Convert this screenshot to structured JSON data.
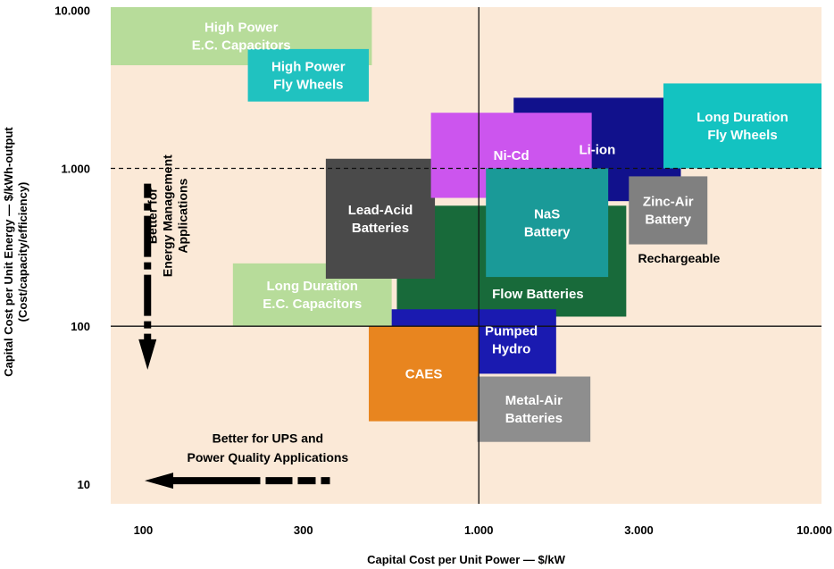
{
  "chart_data": {
    "type": "scatter",
    "xlabel": "Capital Cost per Unit Power — $/kW",
    "ylabel_line1": "Capital Cost per Unit Energy — $/kWh-output",
    "ylabel_line2": "(Cost/capacity/efficiency)",
    "x_scale": "log",
    "y_scale": "log",
    "xlim": [
      80,
      10500
    ],
    "ylim": [
      7.5,
      10500
    ],
    "x_ticks": [
      {
        "value": 100,
        "label": "100"
      },
      {
        "value": 300,
        "label": "300"
      },
      {
        "value": 1000,
        "label": "1.000"
      },
      {
        "value": 3000,
        "label": "3.000"
      },
      {
        "value": 10000,
        "label": "10.000"
      }
    ],
    "y_ticks": [
      {
        "value": 10,
        "label": "10"
      },
      {
        "value": 100,
        "label": "100"
      },
      {
        "value": 1000,
        "label": "1.000"
      },
      {
        "value": 10000,
        "label": "10.000"
      }
    ],
    "reference_lines": [
      {
        "axis": "x",
        "value": 1000,
        "style": "solid"
      },
      {
        "axis": "y",
        "value": 100,
        "style": "solid"
      },
      {
        "axis": "y",
        "value": 1000,
        "style": "dashed"
      }
    ],
    "regions": [
      {
        "name": "High Power E.C. Capacitors",
        "lines": [
          "High Power",
          "E.C. Capacitors"
        ],
        "x": [
          80,
          480
        ],
        "y": [
          4500,
          10500
        ],
        "color": "#b7dc9a",
        "text_color": "#ffffff"
      },
      {
        "name": "High Power Fly Wheels",
        "lines": [
          "High Power",
          "Fly Wheels"
        ],
        "x": [
          205,
          470
        ],
        "y": [
          2650,
          5700
        ],
        "color": "#20c2c0",
        "text_color": "#ffffff"
      },
      {
        "name": "Long Duration E.C. Capacitors",
        "lines": [
          "Long Duration",
          "E.C. Capacitors"
        ],
        "x": [
          185,
          550
        ],
        "y": [
          100,
          250
        ],
        "color": "#b7dc9a",
        "text_color": "#ffffff"
      },
      {
        "name": "Flow Batteries",
        "lines": [
          "Flow Batteries"
        ],
        "x": [
          570,
          2750
        ],
        "y": [
          115,
          580
        ],
        "color": "#186a3a",
        "text_color": "#ffffff",
        "label_at": [
          1500,
          160
        ]
      },
      {
        "name": "Lead-Acid Batteries",
        "lines": [
          "Lead-Acid",
          "Batteries"
        ],
        "x": [
          350,
          740
        ],
        "y": [
          200,
          1150
        ],
        "color": "#4a4a4a",
        "text_color": "#ffffff"
      },
      {
        "name": "Pumped Hydro",
        "lines": [
          "Pumped",
          "Hydro"
        ],
        "x": [
          550,
          1700
        ],
        "y": [
          50,
          128
        ],
        "color": "#1a1ab0",
        "text_color": "#ffffff",
        "label_at": [
          1250,
          82
        ]
      },
      {
        "name": "CAES",
        "lines": [
          "CAES"
        ],
        "x": [
          470,
          1000
        ],
        "y": [
          25,
          100
        ],
        "color": "#e8851f",
        "text_color": "#ffffff"
      },
      {
        "name": "Metal-Air Batteries",
        "lines": [
          "Metal-Air",
          "Batteries"
        ],
        "x": [
          990,
          2150
        ],
        "y": [
          18.5,
          48
        ],
        "color": "#8e8e8e",
        "text_color": "#ffffff"
      },
      {
        "name": "Li-ion",
        "lines": [
          "Li-ion"
        ],
        "x": [
          1270,
          4000
        ],
        "y": [
          620,
          2800
        ],
        "color": "#11118c",
        "text_color": "#ffffff"
      },
      {
        "name": "Ni-Cd",
        "lines": [
          "Ni-Cd"
        ],
        "x": [
          720,
          2170
        ],
        "y": [
          650,
          2250
        ],
        "color": "#cc55ee",
        "text_color": "#ffffff"
      },
      {
        "name": "NaS Battery",
        "lines": [
          "NaS",
          "Battery"
        ],
        "x": [
          1050,
          2430
        ],
        "y": [
          205,
          1000
        ],
        "color": "#1a9a98",
        "text_color": "#ffffff"
      },
      {
        "name": "Long Duration Fly Wheels",
        "lines": [
          "Long Duration",
          "Fly Wheels"
        ],
        "x": [
          3550,
          10500
        ],
        "y": [
          1000,
          3450
        ],
        "color": "#13c3c1",
        "text_color": "#ffffff"
      },
      {
        "name": "Zinc-Air Battery",
        "lines": [
          "Zinc-Air",
          "Battery"
        ],
        "x": [
          2800,
          4800
        ],
        "y": [
          330,
          890
        ],
        "color": "#808080",
        "text_color": "#ffffff"
      }
    ],
    "annotations": [
      {
        "text": "Rechargeable",
        "x": 3950,
        "y": 270
      },
      {
        "text": "Better for",
        "x": 118,
        "y": 500,
        "rotate": -90,
        "line": 0
      },
      {
        "text": "Energy Management",
        "x": 118,
        "y": 500,
        "rotate": -90,
        "line": 1
      },
      {
        "text": "Applications",
        "x": 118,
        "y": 500,
        "rotate": -90,
        "line": 2
      },
      {
        "text": "Better for UPS and",
        "x": 235,
        "y": 19.6
      },
      {
        "text": "Power Quality Applications",
        "x": 235,
        "y": 14.8
      }
    ],
    "arrows": [
      {
        "name": "energy-management-arrow",
        "direction": "down",
        "x": 103,
        "from_y": 800,
        "to_y": 53
      },
      {
        "name": "ups-power-quality-arrow",
        "direction": "left",
        "y": 10.5,
        "from_x": 360,
        "to_x": 101
      }
    ],
    "background_color": "#fbe9d7",
    "legend": "none",
    "grid": false
  }
}
